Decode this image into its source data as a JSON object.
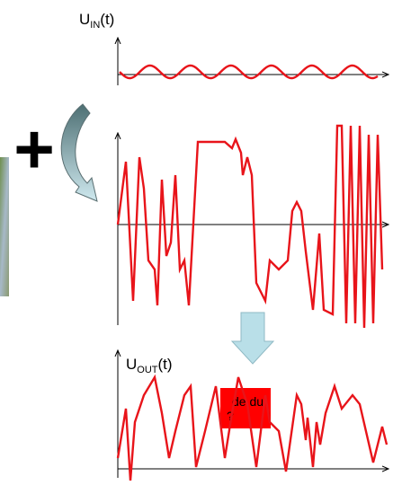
{
  "input_label": {
    "main": "U",
    "sub": "IN",
    "suffix": "(t)"
  },
  "output_label": {
    "main": "U",
    "sub": "OUT",
    "suffix": "(t)"
  },
  "operator": "+",
  "note": {
    "lines": [
      "de du",
      "?"
    ]
  }
}
